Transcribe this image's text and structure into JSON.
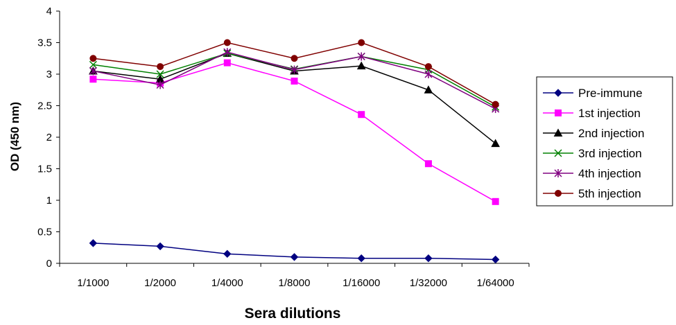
{
  "chart_data": {
    "type": "line",
    "title": "",
    "xlabel": "Sera dilutions",
    "ylabel": "OD (450 nm)",
    "categories": [
      "1/1000",
      "1/2000",
      "1/4000",
      "1/8000",
      "1/16000",
      "1/32000",
      "1/64000"
    ],
    "ylim": [
      0,
      4
    ],
    "yticks": [
      0,
      0.5,
      1,
      1.5,
      2,
      2.5,
      3,
      3.5,
      4
    ],
    "ytick_labels": [
      "0",
      "0.5",
      "1",
      "1.5",
      "2",
      "2.5",
      "3",
      "3.5",
      "4"
    ],
    "grid": false,
    "legend_position": "right",
    "series": [
      {
        "name": "Pre-immune",
        "color": "#000080",
        "marker": "diamond",
        "values": [
          0.32,
          0.27,
          0.15,
          0.1,
          0.08,
          0.08,
          0.06
        ]
      },
      {
        "name": "1st injection",
        "color": "#ff00ff",
        "marker": "square",
        "values": [
          2.92,
          2.86,
          3.18,
          2.89,
          2.36,
          1.58,
          0.98
        ]
      },
      {
        "name": "2nd injection",
        "color": "#000000",
        "marker": "triangle",
        "values": [
          3.05,
          2.92,
          3.33,
          3.05,
          3.13,
          2.75,
          1.9
        ]
      },
      {
        "name": "3rd injection",
        "color": "#008000",
        "marker": "x",
        "values": [
          3.15,
          3.0,
          3.33,
          3.08,
          3.28,
          3.07,
          2.48
        ]
      },
      {
        "name": "4th injection",
        "color": "#800080",
        "marker": "star",
        "values": [
          3.05,
          2.83,
          3.35,
          3.07,
          3.28,
          3.0,
          2.45
        ]
      },
      {
        "name": "5th injection",
        "color": "#800000",
        "marker": "circle",
        "values": [
          3.25,
          3.12,
          3.5,
          3.25,
          3.5,
          3.12,
          2.52
        ]
      }
    ]
  }
}
